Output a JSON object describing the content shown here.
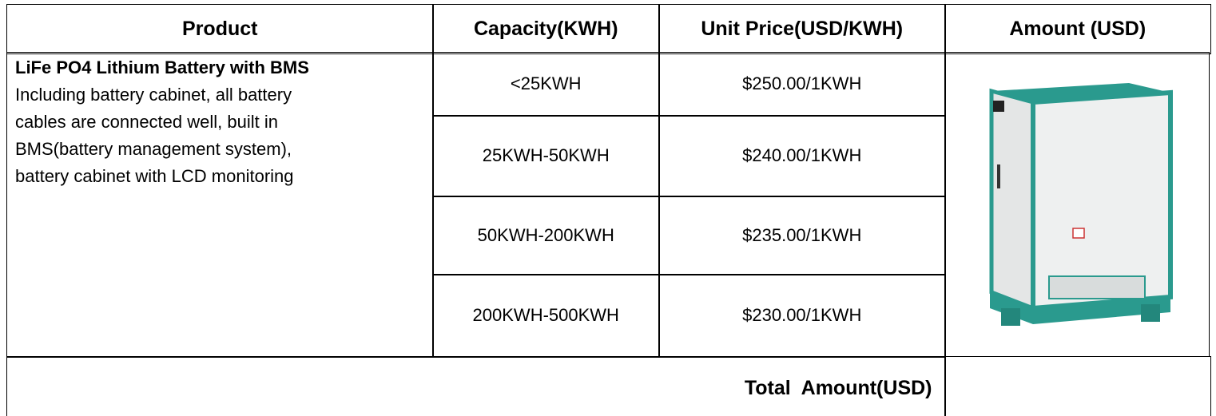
{
  "header": {
    "columns": [
      "Product",
      "Capacity(KWH)",
      "Unit Price(USD/KWH)",
      "Amount (USD)"
    ]
  },
  "product": {
    "name": "LiFe PO4 Lithium Battery with BMS",
    "description_lines": [
      "Including battery cabinet, all battery",
      "cables are connected well, built in",
      "BMS(battery management system),",
      "battery cabinet with LCD monitoring"
    ]
  },
  "tiers": [
    {
      "capacity": "<25KWH",
      "price": "$250.00/1KWH"
    },
    {
      "capacity": "25KWH-50KWH",
      "price": "$240.00/1KWH"
    },
    {
      "capacity": "50KWH-200KWH",
      "price": "$235.00/1KWH"
    },
    {
      "capacity": "200KWH-500KWH",
      "price": "$230.00/1KWH"
    }
  ],
  "total_label": "Total  Amount(USD)"
}
